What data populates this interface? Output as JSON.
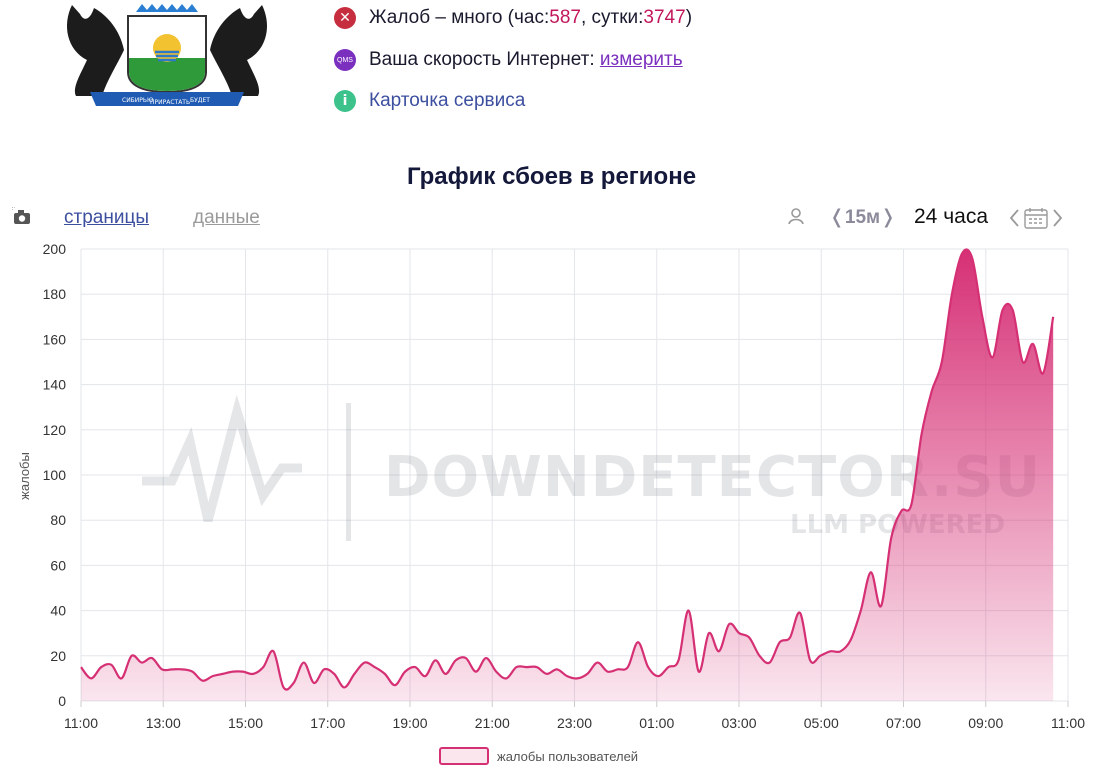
{
  "header": {
    "complaints": {
      "prefix": "Жалоб – много (час: ",
      "hour_value": "587",
      "middle": ", сутки: ",
      "day_value": "3747",
      "suffix": ")"
    },
    "speed": {
      "label": "Ваша скорость Интернет: ",
      "link": "измерить",
      "icon_text": "QMS"
    },
    "service_card": "Карточка сервиса",
    "coat_of_arms": {
      "banner_left": "СИБИРЬЮ",
      "banner_center": "ПРИРАСТАТЬ",
      "banner_right": "БУДЕТ"
    }
  },
  "chart_title": "График сбоев в регионе",
  "tabs": {
    "pages": "страницы",
    "data": "данные"
  },
  "controls": {
    "interval": "❬15м❭",
    "period": "24 часа"
  },
  "watermark": {
    "main": "DOWNDETECTOR.SU",
    "sub": "LLM POWERED"
  },
  "colors": {
    "series": "#d63075",
    "accent_red": "#c2185b",
    "link": "#7b2fbe"
  },
  "chart_data": {
    "type": "area",
    "ylabel": "жалобы",
    "ylim": [
      0,
      200
    ],
    "yticks": [
      0,
      20,
      40,
      60,
      80,
      100,
      120,
      140,
      160,
      180,
      200
    ],
    "xlabels": [
      "11:00",
      "13:00",
      "15:00",
      "17:00",
      "19:00",
      "21:00",
      "23:00",
      "01:00",
      "03:00",
      "05:00",
      "07:00",
      "09:00",
      "11:00"
    ],
    "grid": true,
    "legend_position": "bottom",
    "series": [
      {
        "name": "жалобы пользователей",
        "color": "#d63075",
        "values": [
          15,
          10,
          15,
          16,
          10,
          20,
          17,
          19,
          14,
          14,
          14,
          13,
          9,
          11,
          12,
          13,
          13,
          12,
          15,
          22,
          6,
          8,
          17,
          8,
          14,
          12,
          6,
          12,
          17,
          15,
          12,
          7,
          13,
          15,
          11,
          18,
          12,
          18,
          19,
          13,
          19,
          13,
          10,
          15,
          15,
          15,
          12,
          14,
          11,
          10,
          12,
          17,
          13,
          14,
          15,
          26,
          15,
          11,
          15,
          18,
          40,
          13,
          30,
          22,
          34,
          30,
          28,
          20,
          17,
          26,
          28,
          39,
          18,
          20,
          22,
          22,
          27,
          40,
          57,
          42,
          72,
          84,
          87,
          118,
          137,
          150,
          180,
          198,
          196,
          170,
          152,
          173,
          173,
          150,
          158,
          145,
          170
        ]
      }
    ]
  }
}
